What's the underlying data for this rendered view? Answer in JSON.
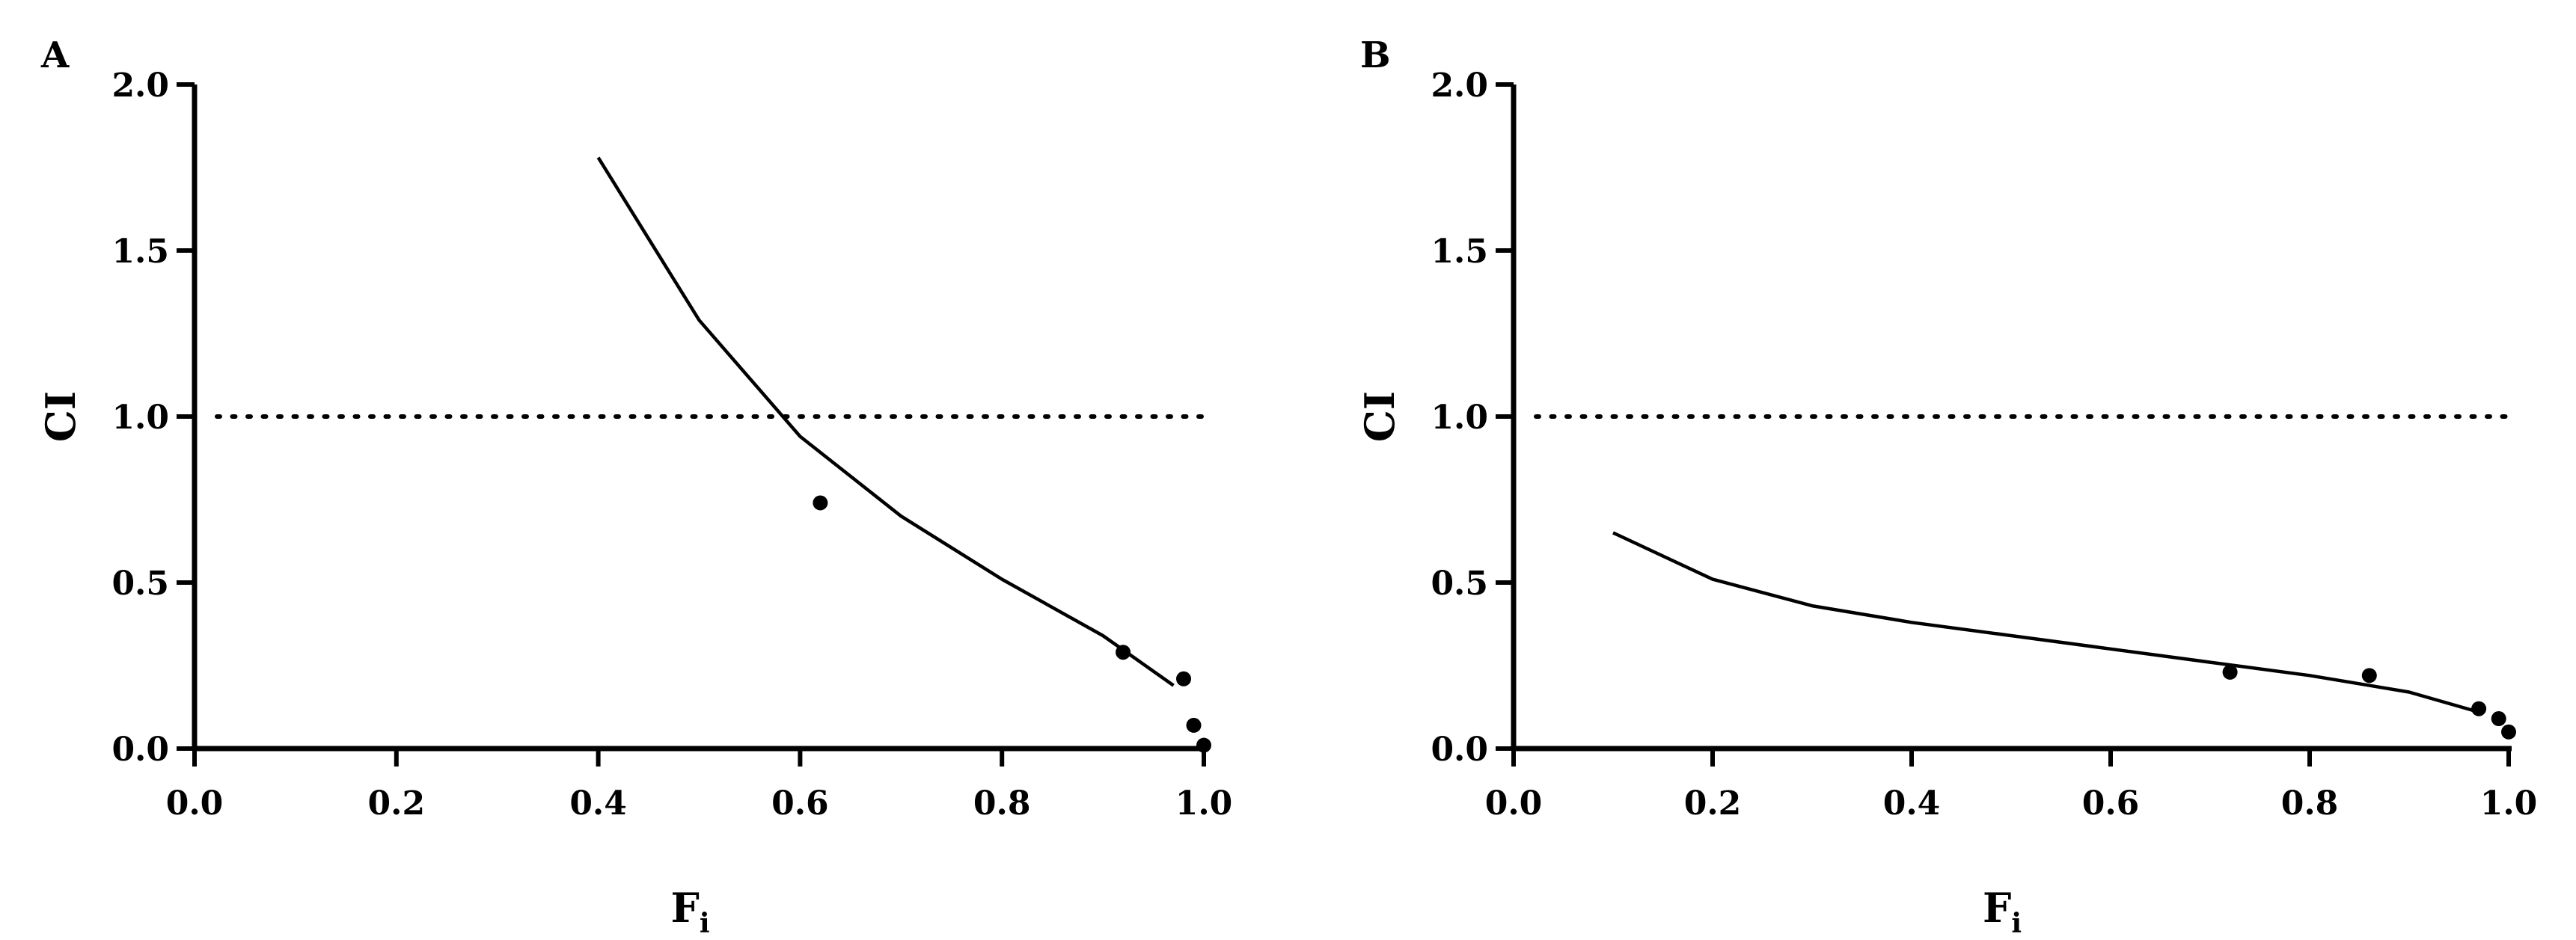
{
  "chart_data": [
    {
      "type": "line",
      "panel_label": "A",
      "xlabel": "F",
      "xlabel_subscript": "i",
      "ylabel": "CI",
      "xlim": [
        0.0,
        1.0
      ],
      "ylim": [
        0.0,
        2.0
      ],
      "xticks": [
        "0.0",
        "0.2",
        "0.4",
        "0.6",
        "0.8",
        "1.0"
      ],
      "yticks": [
        "0.0",
        "0.5",
        "1.0",
        "1.5",
        "2.0"
      ],
      "reference_line": {
        "y": 1.0,
        "style": "dotted"
      },
      "series": [
        {
          "kind": "line",
          "x": [
            0.4,
            0.5,
            0.6,
            0.7,
            0.8,
            0.9,
            0.97
          ],
          "y": [
            1.78,
            1.29,
            0.94,
            0.7,
            0.51,
            0.34,
            0.19
          ]
        },
        {
          "kind": "scatter",
          "x": [
            0.62,
            0.92,
            0.98,
            0.99,
            1.0
          ],
          "y": [
            0.74,
            0.29,
            0.21,
            0.07,
            0.01
          ]
        }
      ]
    },
    {
      "type": "line",
      "panel_label": "B",
      "xlabel": "F",
      "xlabel_subscript": "i",
      "ylabel": "CI",
      "xlim": [
        0.0,
        1.0
      ],
      "ylim": [
        0.0,
        2.0
      ],
      "xticks": [
        "0.0",
        "0.2",
        "0.4",
        "0.6",
        "0.8",
        "1.0"
      ],
      "yticks": [
        "0.0",
        "0.5",
        "1.0",
        "1.5",
        "2.0"
      ],
      "reference_line": {
        "y": 1.0,
        "style": "dotted"
      },
      "series": [
        {
          "kind": "line",
          "x": [
            0.1,
            0.2,
            0.3,
            0.4,
            0.5,
            0.6,
            0.7,
            0.8,
            0.9,
            0.97
          ],
          "y": [
            0.65,
            0.51,
            0.43,
            0.38,
            0.34,
            0.3,
            0.26,
            0.22,
            0.17,
            0.11
          ]
        },
        {
          "kind": "scatter",
          "x": [
            0.72,
            0.86,
            0.97,
            0.99,
            1.0
          ],
          "y": [
            0.23,
            0.22,
            0.12,
            0.09,
            0.05
          ]
        }
      ]
    }
  ]
}
